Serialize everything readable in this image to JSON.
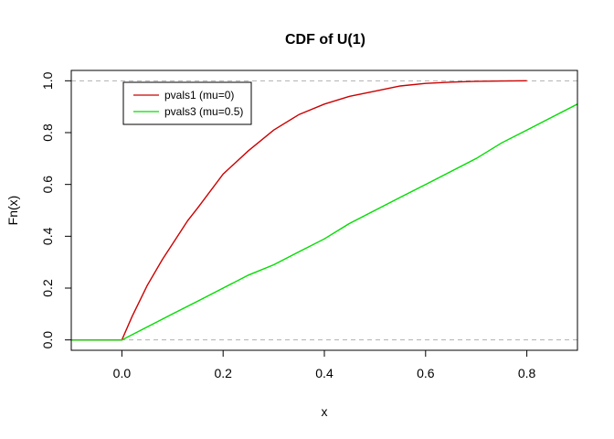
{
  "chart_data": {
    "type": "line",
    "title": "CDF of U(1)",
    "xlabel": "x",
    "ylabel": "Fn(x)",
    "xlim": [
      -0.1,
      0.9
    ],
    "ylim": [
      -0.04,
      1.04
    ],
    "x_ticks": [
      0.0,
      0.2,
      0.4,
      0.6,
      0.8
    ],
    "x_tick_labels": [
      "0.0",
      "0.2",
      "0.4",
      "0.6",
      "0.8"
    ],
    "y_ticks": [
      0.0,
      0.2,
      0.4,
      0.6,
      0.8,
      1.0
    ],
    "y_tick_labels": [
      "0.0",
      "0.2",
      "0.4",
      "0.6",
      "0.8",
      "1.0"
    ],
    "reference_lines": [
      0,
      1
    ],
    "grid": false,
    "legend_position": "top-left",
    "series": [
      {
        "name": "pvals1 (mu=0)",
        "color": "#cc0000",
        "x": [
          -0.1,
          0.0,
          0.02,
          0.05,
          0.08,
          0.1,
          0.13,
          0.15,
          0.2,
          0.25,
          0.3,
          0.35,
          0.4,
          0.45,
          0.5,
          0.55,
          0.6,
          0.65,
          0.7,
          0.75,
          0.8
        ],
        "y": [
          0.0,
          0.0,
          0.09,
          0.21,
          0.31,
          0.37,
          0.46,
          0.51,
          0.64,
          0.73,
          0.81,
          0.87,
          0.91,
          0.94,
          0.96,
          0.98,
          0.99,
          0.995,
          0.998,
          0.999,
          1.0
        ]
      },
      {
        "name": "pvals3 (mu=0.5)",
        "color": "#00dd00",
        "x": [
          -0.1,
          0.0,
          0.05,
          0.1,
          0.15,
          0.2,
          0.25,
          0.3,
          0.35,
          0.4,
          0.45,
          0.5,
          0.55,
          0.6,
          0.65,
          0.7,
          0.75,
          0.8,
          0.85,
          0.9
        ],
        "y": [
          0.0,
          0.0,
          0.05,
          0.1,
          0.15,
          0.2,
          0.25,
          0.29,
          0.34,
          0.39,
          0.45,
          0.5,
          0.55,
          0.6,
          0.65,
          0.7,
          0.76,
          0.81,
          0.86,
          0.91
        ]
      }
    ]
  }
}
